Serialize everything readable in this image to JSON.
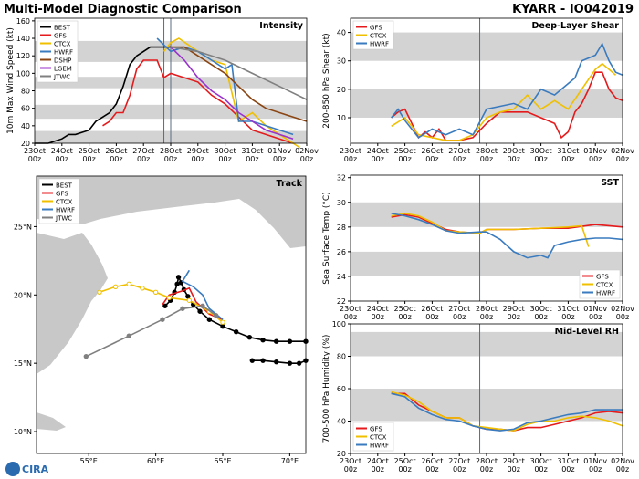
{
  "header": {
    "title": "Multi-Model Diagnostic Comparison",
    "storm": "KYARR - IO042019",
    "logo": "CIRA"
  },
  "chart_data": [
    {
      "type": "line",
      "title": "Intensity",
      "ylabel": "10m Max Wind Speed (kt)",
      "xlim": [
        0,
        10
      ],
      "ylim": [
        20,
        163
      ],
      "xticks": [
        {
          "value": 0,
          "label": "23Oct\n00z"
        },
        {
          "value": 1,
          "label": "24Oct\n00z"
        },
        {
          "value": 2,
          "label": "25Oct\n00z"
        },
        {
          "value": 3,
          "label": "26Oct\n00z"
        },
        {
          "value": 4,
          "label": "27Oct\n00z"
        },
        {
          "value": 5,
          "label": "28Oct\n00z"
        },
        {
          "value": 6,
          "label": "29Oct\n00z"
        },
        {
          "value": 7,
          "label": "30Oct\n00z"
        },
        {
          "value": 8,
          "label": "31Oct\n00z"
        },
        {
          "value": 9,
          "label": "01Nov\n00z"
        },
        {
          "value": 10,
          "label": "02Nov\n00z"
        }
      ],
      "yticks": [
        20,
        40,
        60,
        80,
        100,
        120,
        140,
        160
      ],
      "bands": [
        [
          20,
          34
        ],
        [
          48,
          64
        ],
        [
          83,
          96
        ],
        [
          113,
          137
        ]
      ],
      "vlines": [
        4.75,
        5
      ],
      "legend": "upper left",
      "series": [
        {
          "name": "BEST",
          "color": "#000000",
          "x": [
            0,
            0.5,
            1,
            1.25,
            1.5,
            2,
            2.25,
            2.5,
            2.75,
            3,
            3.25,
            3.5,
            3.75,
            4,
            4.25,
            4.5,
            4.75,
            5
          ],
          "values": [
            20,
            20,
            25,
            30,
            30,
            35,
            45,
            50,
            55,
            65,
            85,
            110,
            120,
            125,
            130,
            130,
            130,
            130
          ]
        },
        {
          "name": "GFS",
          "color": "#e41a1c",
          "x": [
            2.5,
            2.75,
            3,
            3.25,
            3.5,
            3.75,
            4,
            4.25,
            4.5,
            4.75,
            5,
            5.5,
            6,
            6.5,
            7,
            7.5,
            8,
            8.5,
            9,
            9.5
          ],
          "values": [
            40,
            45,
            55,
            55,
            75,
            105,
            115,
            115,
            115,
            95,
            100,
            95,
            90,
            75,
            65,
            50,
            35,
            30,
            25,
            20
          ]
        },
        {
          "name": "CTCX",
          "color": "#f0c000",
          "x": [
            4.75,
            5,
            5.3,
            6,
            6.5,
            7,
            7.5,
            8,
            8.5,
            9,
            9.5,
            9.75
          ],
          "values": [
            125,
            135,
            140,
            125,
            115,
            110,
            45,
            55,
            40,
            30,
            20,
            15
          ]
        },
        {
          "name": "HWRF",
          "color": "#3a7bbf",
          "x": [
            4.5,
            5,
            5.5,
            6,
            6.5,
            7,
            7.25,
            7.5,
            8,
            8.5,
            9,
            9.5
          ],
          "values": [
            140,
            125,
            130,
            125,
            115,
            105,
            110,
            45,
            45,
            40,
            35,
            30
          ]
        },
        {
          "name": "DSHP",
          "color": "#8b4513",
          "x": [
            5,
            5.5,
            6,
            6.5,
            7,
            7.5,
            8,
            8.5,
            9,
            9.5,
            10
          ],
          "values": [
            130,
            130,
            120,
            110,
            100,
            85,
            70,
            60,
            55,
            50,
            45
          ]
        },
        {
          "name": "LGEM",
          "color": "#9932cc",
          "x": [
            5,
            5.5,
            6,
            6.5,
            7,
            7.5,
            8,
            8.5,
            9,
            9.5
          ],
          "values": [
            130,
            115,
            95,
            80,
            70,
            55,
            45,
            35,
            30,
            25
          ]
        },
        {
          "name": "JTWC",
          "color": "#808080",
          "x": [
            5,
            6,
            7,
            8,
            9,
            10
          ],
          "values": [
            130,
            125,
            115,
            100,
            85,
            70
          ]
        }
      ]
    },
    {
      "type": "line",
      "title": "Deep-Layer Shear",
      "ylabel": "200-850 hPa Shear (kt)",
      "xlim": [
        0,
        10
      ],
      "ylim": [
        1,
        45
      ],
      "xticks": [
        {
          "value": 0,
          "label": "23Oct\n00z"
        },
        {
          "value": 1,
          "label": "24Oct\n00z"
        },
        {
          "value": 2,
          "label": "25Oct\n00z"
        },
        {
          "value": 3,
          "label": "26Oct\n00z"
        },
        {
          "value": 4,
          "label": "27Oct\n00z"
        },
        {
          "value": 5,
          "label": "28Oct\n00z"
        },
        {
          "value": 6,
          "label": "29Oct\n00z"
        },
        {
          "value": 7,
          "label": "30Oct\n00z"
        },
        {
          "value": 8,
          "label": "31Oct\n00z"
        },
        {
          "value": 9,
          "label": "01Nov\n00z"
        },
        {
          "value": 10,
          "label": "02Nov\n00z"
        }
      ],
      "yticks": [
        10,
        20,
        30,
        40
      ],
      "bands": [
        [
          10,
          20
        ],
        [
          30,
          40
        ]
      ],
      "vlines": [
        4.75
      ],
      "legend": "upper left",
      "series": [
        {
          "name": "GFS",
          "color": "#e41a1c",
          "x": [
            1.5,
            1.75,
            2,
            2.25,
            2.5,
            2.75,
            3,
            3.25,
            3.5,
            4,
            4.5,
            5,
            5.5,
            6,
            6.5,
            7,
            7.5,
            7.75,
            8,
            8.25,
            8.5,
            8.75,
            9,
            9.25,
            9.5,
            9.75,
            10
          ],
          "values": [
            10,
            12,
            13,
            8,
            3,
            5,
            3,
            6,
            2,
            2,
            3,
            8,
            12,
            12,
            12,
            10,
            8,
            3,
            5,
            12,
            15,
            20,
            26,
            26,
            20,
            17,
            16
          ]
        },
        {
          "name": "CTCX",
          "color": "#f0c000",
          "x": [
            1.5,
            2,
            2.5,
            3,
            3.5,
            4,
            4.5,
            5,
            5.5,
            6,
            6.5,
            7,
            7.5,
            8,
            8.5,
            9,
            9.25,
            9.5,
            9.75
          ],
          "values": [
            7,
            10,
            4,
            3,
            2,
            2,
            4,
            10,
            12,
            13,
            18,
            13,
            16,
            13,
            20,
            27,
            29,
            27,
            25
          ]
        },
        {
          "name": "HWRF",
          "color": "#3a7bbf",
          "x": [
            1.5,
            1.75,
            2,
            2.5,
            3,
            3.5,
            4,
            4.5,
            5,
            5.5,
            6,
            6.5,
            7,
            7.5,
            8,
            8.25,
            8.5,
            9,
            9.25,
            9.5,
            9.75,
            10
          ],
          "values": [
            10,
            13,
            9,
            3,
            6,
            4,
            6,
            4,
            13,
            14,
            15,
            13,
            20,
            18,
            22,
            24,
            30,
            32,
            36,
            30,
            26,
            25
          ]
        }
      ]
    },
    {
      "type": "line",
      "title": "Track",
      "xlim": [
        51.1,
        71.2
      ],
      "ylim": [
        8.4,
        28.7
      ],
      "xticks": [
        {
          "value": 55,
          "label": "55°E"
        },
        {
          "value": 60,
          "label": "60°E"
        },
        {
          "value": 65,
          "label": "65°E"
        },
        {
          "value": 70,
          "label": "70°E"
        }
      ],
      "yticks": [
        {
          "value": 10,
          "label": "10°N"
        },
        {
          "value": 15,
          "label": "15°N"
        },
        {
          "value": 20,
          "label": "20°N"
        },
        {
          "value": 25,
          "label": "25°N"
        }
      ],
      "legend": "upper left",
      "series": [
        {
          "name": "BEST",
          "color": "#000000",
          "marker": "filled",
          "x": [
            71.2,
            70,
            69,
            68,
            67,
            66,
            65,
            64,
            63.3,
            62.8,
            62.4,
            62.1,
            61.9,
            61.7,
            61.6,
            61.4,
            61.1,
            60.7,
            null,
            67.2,
            68,
            69,
            70,
            70.7,
            71.2
          ],
          "values": [
            16.6,
            16.6,
            16.6,
            16.7,
            16.9,
            17.3,
            17.7,
            18.2,
            18.8,
            19.3,
            19.9,
            20.4,
            20.9,
            21.3,
            20.8,
            20.2,
            19.6,
            19.2,
            null,
            15.2,
            15.2,
            15.1,
            15.0,
            15.0,
            15.2
          ]
        },
        {
          "name": "GFS",
          "color": "#e41a1c",
          "x": [
            60.5,
            61,
            62,
            62.5,
            63,
            64,
            65
          ],
          "values": [
            19.3,
            20,
            20.3,
            20.5,
            19.5,
            18.6,
            18.2
          ]
        },
        {
          "name": "CTCX",
          "color": "#f0c000",
          "marker": "open",
          "x": [
            55.8,
            57,
            58,
            59,
            60,
            61,
            62.5,
            64,
            65
          ],
          "values": [
            20.2,
            20.6,
            20.8,
            20.5,
            20.2,
            19.8,
            19.6,
            18.8,
            18
          ]
        },
        {
          "name": "HWRF",
          "color": "#3a7bbf",
          "x": [
            62.5,
            62,
            62.8,
            63.5,
            64,
            65
          ],
          "values": [
            21.8,
            21,
            20.6,
            20,
            19,
            18.2
          ]
        },
        {
          "name": "JTWC",
          "color": "#808080",
          "marker": "filled",
          "x": [
            54.8,
            58,
            60.5,
            62,
            63.5,
            64.5
          ],
          "values": [
            15.5,
            17,
            18.2,
            19,
            19.2,
            18.5
          ]
        }
      ]
    },
    {
      "type": "line",
      "title": "SST",
      "ylabel": "Sea Surface Temp (°C)",
      "xlim": [
        0,
        10
      ],
      "ylim": [
        22,
        32.2
      ],
      "xticks": [
        {
          "value": 0,
          "label": "23Oct\n00z"
        },
        {
          "value": 1,
          "label": "24Oct\n00z"
        },
        {
          "value": 2,
          "label": "25Oct\n00z"
        },
        {
          "value": 3,
          "label": "26Oct\n00z"
        },
        {
          "value": 4,
          "label": "27Oct\n00z"
        },
        {
          "value": 5,
          "label": "28Oct\n00z"
        },
        {
          "value": 6,
          "label": "29Oct\n00z"
        },
        {
          "value": 7,
          "label": "30Oct\n00z"
        },
        {
          "value": 8,
          "label": "31Oct\n00z"
        },
        {
          "value": 9,
          "label": "01Nov\n00z"
        },
        {
          "value": 10,
          "label": "02Nov\n00z"
        }
      ],
      "yticks": [
        22,
        24,
        26,
        28,
        30,
        32
      ],
      "bands": [
        [
          24,
          26
        ],
        [
          28,
          30
        ]
      ],
      "vlines": [
        4.75
      ],
      "legend": "lower right",
      "series": [
        {
          "name": "GFS",
          "color": "#e41a1c",
          "x": [
            1.5,
            2,
            2.5,
            3,
            3.5,
            4,
            4.75,
            5,
            6,
            7,
            8,
            9,
            10
          ],
          "values": [
            28.8,
            29.0,
            28.8,
            28.3,
            27.8,
            27.6,
            27.5,
            27.8,
            27.8,
            27.9,
            27.9,
            28.2,
            28.0
          ]
        },
        {
          "name": "CTCX",
          "color": "#f0c000",
          "x": [
            1.5,
            2,
            2.5,
            3,
            3.5,
            4,
            4.75,
            5,
            6,
            7,
            8,
            8.5,
            8.75
          ],
          "values": [
            28.9,
            29.1,
            28.9,
            28.4,
            27.7,
            27.6,
            27.5,
            27.8,
            27.8,
            27.9,
            28.0,
            28.1,
            26.4
          ]
        },
        {
          "name": "HWRF",
          "color": "#3a7bbf",
          "x": [
            1.5,
            2,
            2.5,
            3,
            3.5,
            4,
            4.75,
            5,
            5.5,
            6,
            6.5,
            7,
            7.25,
            7.5,
            8,
            8.5,
            9,
            9.5,
            10
          ],
          "values": [
            29.1,
            28.9,
            28.6,
            28.2,
            27.7,
            27.5,
            27.6,
            27.6,
            27,
            26,
            25.5,
            25.7,
            25.5,
            26.5,
            26.8,
            27,
            27.1,
            27.1,
            27.0
          ]
        }
      ]
    },
    {
      "type": "line",
      "title": "Mid-Level RH",
      "ylabel": "700-500 hPa Humidity (%)",
      "xlim": [
        0,
        10
      ],
      "ylim": [
        20,
        100
      ],
      "xticks": [
        {
          "value": 0,
          "label": "23Oct\n00z"
        },
        {
          "value": 1,
          "label": "24Oct\n00z"
        },
        {
          "value": 2,
          "label": "25Oct\n00z"
        },
        {
          "value": 3,
          "label": "26Oct\n00z"
        },
        {
          "value": 4,
          "label": "27Oct\n00z"
        },
        {
          "value": 5,
          "label": "28Oct\n00z"
        },
        {
          "value": 6,
          "label": "29Oct\n00z"
        },
        {
          "value": 7,
          "label": "30Oct\n00z"
        },
        {
          "value": 8,
          "label": "31Oct\n00z"
        },
        {
          "value": 9,
          "label": "01Nov\n00z"
        },
        {
          "value": 10,
          "label": "02Nov\n00z"
        }
      ],
      "yticks": [
        20,
        40,
        60,
        80,
        100
      ],
      "bands": [
        [
          40,
          60
        ],
        [
          80,
          95
        ]
      ],
      "vlines": [
        4.75
      ],
      "legend": "lower left",
      "series": [
        {
          "name": "GFS",
          "color": "#e41a1c",
          "x": [
            1.5,
            2,
            2.5,
            3,
            3.5,
            4,
            4.5,
            5,
            5.5,
            6,
            6.5,
            7,
            7.5,
            8,
            8.5,
            9,
            9.5,
            10
          ],
          "values": [
            57,
            57,
            50,
            46,
            42,
            42,
            37,
            35,
            35,
            34,
            36,
            36,
            38,
            40,
            42,
            45,
            46,
            45
          ]
        },
        {
          "name": "CTCX",
          "color": "#f0c000",
          "x": [
            1.5,
            2,
            2.5,
            3,
            3.5,
            4,
            4.5,
            5,
            5.5,
            6,
            6.5,
            7,
            7.5,
            8,
            8.5,
            9,
            9.5,
            10
          ],
          "values": [
            58,
            56,
            52,
            46,
            42,
            42,
            37,
            36,
            35,
            34,
            38,
            40,
            40,
            42,
            43,
            42,
            40,
            37
          ]
        },
        {
          "name": "HWRF",
          "color": "#3a7bbf",
          "x": [
            1.5,
            2,
            2.5,
            3,
            3.5,
            4,
            4.5,
            5,
            5.5,
            6,
            6.5,
            7,
            7.5,
            8,
            8.5,
            9,
            9.5,
            10
          ],
          "values": [
            57,
            55,
            48,
            44,
            41,
            40,
            37,
            35,
            34,
            35,
            39,
            40,
            42,
            44,
            45,
            47,
            47,
            47
          ]
        }
      ]
    }
  ]
}
